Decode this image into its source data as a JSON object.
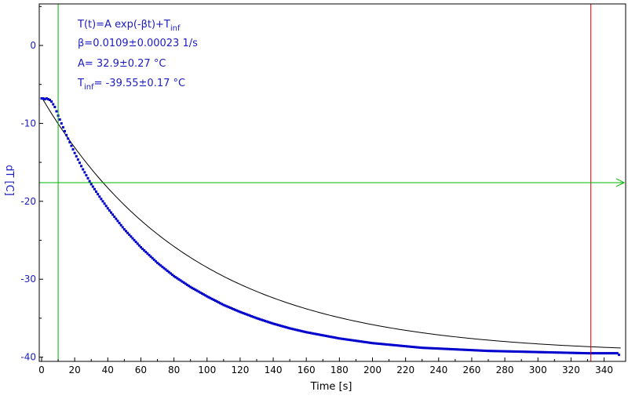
{
  "chart_data": {
    "type": "scatter",
    "xlabel": "Time [s]",
    "ylabel": "dT [C]",
    "xlim": [
      0,
      350
    ],
    "ylim": [
      -40.2,
      5.5
    ],
    "x_ticks": [
      0,
      20,
      40,
      60,
      80,
      100,
      120,
      140,
      160,
      180,
      200,
      220,
      240,
      260,
      280,
      300,
      320,
      340
    ],
    "y_ticks": [
      0,
      -10,
      -20,
      -30,
      -40
    ],
    "grid": false,
    "annotations": {
      "model": {
        "base": "T(t)=A exp(-βt)+T",
        "sub": "inf"
      },
      "beta": "β=0.0109±0.00023 1/s",
      "amplitude": "A= 32.9±0.27 °C",
      "tinf": {
        "prefix": "T",
        "sub": "inf",
        "suffix": "= -39.55±0.17 °C"
      }
    },
    "fit": {
      "A": 32.9,
      "beta": 0.0109,
      "T_inf": -39.55
    },
    "measured": {
      "x": [
        0,
        1,
        2,
        3,
        4,
        5,
        6,
        8,
        10,
        12,
        15,
        20,
        25,
        30,
        35,
        40,
        50,
        60,
        70,
        80,
        90,
        100,
        110,
        120,
        130,
        140,
        150,
        160,
        170,
        180,
        190,
        200,
        210,
        220,
        230,
        240,
        250,
        260,
        270,
        280,
        290,
        300,
        310,
        320,
        330,
        340,
        348,
        349
      ],
      "y": [
        -6.8,
        -6.8,
        -6.9,
        -6.8,
        -6.9,
        -7.0,
        -7.2,
        -7.9,
        -9.0,
        -10.0,
        -11.5,
        -13.8,
        -15.9,
        -17.8,
        -19.4,
        -20.9,
        -23.6,
        -25.9,
        -27.9,
        -29.6,
        -31.0,
        -32.2,
        -33.3,
        -34.2,
        -35.0,
        -35.7,
        -36.3,
        -36.8,
        -37.2,
        -37.6,
        -37.9,
        -38.2,
        -38.4,
        -38.6,
        -38.8,
        -38.9,
        -39.0,
        -39.1,
        -39.2,
        -39.25,
        -39.3,
        -39.35,
        -39.4,
        -39.45,
        -39.5,
        -39.5,
        -39.5,
        -39.7
      ]
    },
    "markers": {
      "vertical_green_x": 10,
      "vertical_red_x": 332,
      "horizontal_green_y": -17.6
    },
    "colors": {
      "data": "#0000cc",
      "fit": "#000000",
      "text": "#1c1cc4",
      "axis": "#000000",
      "green": "#00b400",
      "red": "#e00000"
    }
  }
}
